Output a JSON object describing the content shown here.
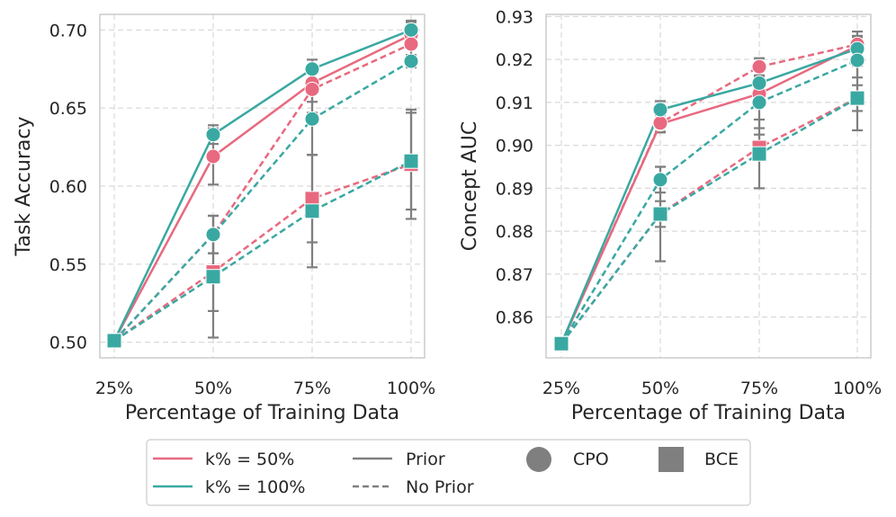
{
  "colors": {
    "k50": "#e8697f",
    "k100": "#3aa8a2",
    "gray": "#7f7f7f",
    "grid": "#d9d9d9",
    "frame": "#cccccc"
  },
  "chart_data": [
    {
      "type": "line",
      "title": "",
      "xlabel": "Percentage of Training Data",
      "ylabel": "Task Accuracy",
      "categories": [
        "25%",
        "50%",
        "75%",
        "100%"
      ],
      "ylim": [
        0.49,
        0.71
      ],
      "yticks": [
        0.5,
        0.55,
        0.6,
        0.65,
        0.7
      ],
      "ytick_labels": [
        "0.50",
        "0.55",
        "0.60",
        "0.65",
        "0.70"
      ],
      "series": [
        {
          "name": "k%=50% Prior CPO",
          "color_key": "k50",
          "style": "solid",
          "marker": "circle",
          "values": [
            0.501,
            0.619,
            0.666,
            0.697
          ],
          "err": [
            0,
            0.018,
            0.012,
            0.008
          ]
        },
        {
          "name": "k%=50% No Prior CPO",
          "color_key": "k50",
          "style": "dashed",
          "marker": "circle",
          "values": [
            0.501,
            0.569,
            0.662,
            0.691
          ],
          "err": [
            0,
            0.012,
            0.015,
            0.01
          ]
        },
        {
          "name": "k%=50% No Prior BCE",
          "color_key": "k50",
          "style": "dashed",
          "marker": "square",
          "values": [
            0.501,
            0.545,
            0.592,
            0.614
          ],
          "err": [
            0,
            0.025,
            0.028,
            0.035
          ]
        },
        {
          "name": "k%=100% Prior CPO",
          "color_key": "k100",
          "style": "solid",
          "marker": "circle",
          "values": [
            0.501,
            0.633,
            0.675,
            0.7
          ],
          "err": [
            0,
            0.006,
            0.006,
            0.006
          ]
        },
        {
          "name": "k%=100% No Prior CPO",
          "color_key": "k100",
          "style": "dashed",
          "marker": "circle",
          "values": [
            0.501,
            0.569,
            0.643,
            0.68
          ],
          "err": [
            0,
            0.012,
            0.023,
            0.004
          ]
        },
        {
          "name": "k%=100% No Prior BCE",
          "color_key": "k100",
          "style": "dashed",
          "marker": "square",
          "values": [
            0.501,
            0.542,
            0.584,
            0.616
          ],
          "err": [
            0,
            0.039,
            0.036,
            0.031
          ]
        }
      ]
    },
    {
      "type": "line",
      "title": "",
      "xlabel": "Percentage of Training Data",
      "ylabel": "Concept AUC",
      "categories": [
        "25%",
        "50%",
        "75%",
        "100%"
      ],
      "ylim": [
        0.8505,
        0.9305
      ],
      "yticks": [
        0.86,
        0.87,
        0.88,
        0.89,
        0.9,
        0.91,
        0.92,
        0.93
      ],
      "ytick_labels": [
        "0.86",
        "0.87",
        "0.88",
        "0.89",
        "0.90",
        "0.91",
        "0.92",
        "0.93"
      ],
      "series": [
        {
          "name": "k%=50% Prior CPO",
          "color_key": "k50",
          "style": "solid",
          "marker": "circle",
          "values": [
            0.8538,
            0.905,
            0.912,
            0.9232
          ],
          "err": [
            0,
            0.002,
            0.002,
            0.002
          ]
        },
        {
          "name": "k%=50% No Prior CPO",
          "color_key": "k50",
          "style": "dashed",
          "marker": "circle",
          "values": [
            0.8538,
            0.9052,
            0.9183,
            0.9235
          ],
          "err": [
            0,
            0.002,
            0.002,
            0.003
          ]
        },
        {
          "name": "k%=50% No Prior BCE",
          "color_key": "k50",
          "style": "dashed",
          "marker": "square",
          "values": [
            0.8538,
            0.884,
            0.8995,
            0.911
          ],
          "err": [
            0,
            0.003,
            0.003,
            0.003
          ]
        },
        {
          "name": "k%=100% Prior CPO",
          "color_key": "k100",
          "style": "solid",
          "marker": "circle",
          "values": [
            0.8538,
            0.9083,
            0.9145,
            0.9225
          ],
          "err": [
            0,
            0.002,
            0.003,
            0.003
          ]
        },
        {
          "name": "k%=100% No Prior CPO",
          "color_key": "k100",
          "style": "dashed",
          "marker": "circle",
          "values": [
            0.8538,
            0.892,
            0.91,
            0.9198
          ],
          "err": [
            0,
            0.003,
            0.006,
            0.004
          ]
        },
        {
          "name": "k%=100% No Prior BCE",
          "color_key": "k100",
          "style": "dashed",
          "marker": "square",
          "values": [
            0.8538,
            0.884,
            0.898,
            0.911
          ],
          "err": [
            0,
            0.011,
            0.008,
            0.0075
          ]
        }
      ]
    }
  ],
  "legend": {
    "k50": "k% = 50%",
    "k100": "k% = 100%",
    "prior": "Prior",
    "no_prior": "No Prior",
    "cpo": "CPO",
    "bce": "BCE"
  }
}
